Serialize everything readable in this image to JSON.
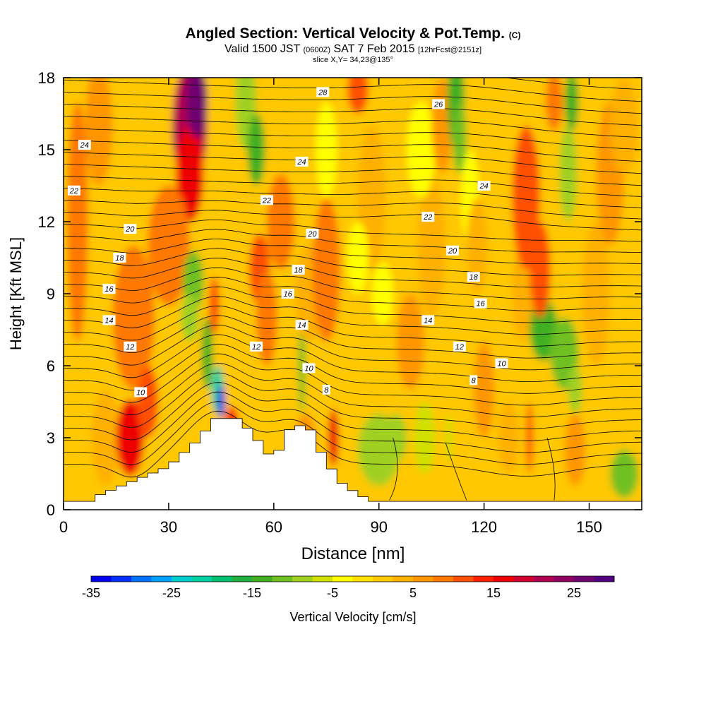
{
  "title": {
    "main": "Angled Section: Vertical Velocity & Pot.Temp.",
    "copyright": "(C)",
    "valid_prefix": "Valid 1500 JST",
    "valid_utc": "(0600Z)",
    "valid_date": "SAT 7 Feb 2015",
    "fcst": "[12hrFcst@2151z]",
    "slice": "slice X,Y= 34,23@135°"
  },
  "chart_data": {
    "type": "heatmap",
    "xlabel": "Distance [nm]",
    "ylabel": "Height [Kft MSL]",
    "xlim": [
      0,
      165
    ],
    "ylim": [
      0,
      18
    ],
    "x_ticks": [
      0,
      30,
      60,
      90,
      120,
      150
    ],
    "y_ticks": [
      0,
      3,
      6,
      9,
      12,
      15,
      18
    ],
    "colorbar": {
      "label": "Vertical Velocity [cm/s]",
      "range": [
        -35,
        30
      ],
      "step": 2.5,
      "tick_labels": [
        -35,
        -25,
        -15,
        -5,
        5,
        15,
        25
      ],
      "colors": [
        "#0000ee",
        "#0030ff",
        "#0070ff",
        "#00a0ff",
        "#00cccc",
        "#00d0a0",
        "#00c070",
        "#20b040",
        "#40b020",
        "#70c020",
        "#a0d020",
        "#d0e000",
        "#ffff00",
        "#ffe000",
        "#ffc800",
        "#ffb000",
        "#ff9600",
        "#ff7800",
        "#ff5000",
        "#ff2000",
        "#ee0000",
        "#d00030",
        "#b00050",
        "#900060",
        "#700070",
        "#500080"
      ]
    },
    "terrain": [
      [
        10,
        0.6
      ],
      [
        30,
        1.8
      ],
      [
        40,
        3.1
      ],
      [
        42,
        3.8
      ],
      [
        50,
        3.8
      ],
      [
        55,
        3.0
      ],
      [
        58,
        2.3
      ],
      [
        62,
        2.5
      ],
      [
        65,
        3.5
      ],
      [
        70,
        3.5
      ],
      [
        72,
        2.8
      ],
      [
        75,
        2.0
      ],
      [
        80,
        1.0
      ],
      [
        85,
        0.6
      ],
      [
        90,
        0
      ]
    ],
    "theta_label_values": [
      8,
      10,
      12,
      14,
      16,
      18,
      20,
      22,
      24,
      26
    ]
  },
  "theta_labels": [
    {
      "text": "28",
      "x": 74,
      "y": 17.4
    },
    {
      "text": "26",
      "x": 107,
      "y": 16.9
    },
    {
      "text": "24",
      "x": 6,
      "y": 15.2
    },
    {
      "text": "24",
      "x": 68,
      "y": 14.5
    },
    {
      "text": "24",
      "x": 120,
      "y": 13.5
    },
    {
      "text": "22",
      "x": 3,
      "y": 13.3
    },
    {
      "text": "22",
      "x": 58,
      "y": 12.9
    },
    {
      "text": "22",
      "x": 104,
      "y": 12.2
    },
    {
      "text": "20",
      "x": 19,
      "y": 11.7
    },
    {
      "text": "20",
      "x": 71,
      "y": 11.5
    },
    {
      "text": "20",
      "x": 111,
      "y": 10.8
    },
    {
      "text": "18",
      "x": 16,
      "y": 10.5
    },
    {
      "text": "18",
      "x": 67,
      "y": 10.0
    },
    {
      "text": "18",
      "x": 117,
      "y": 9.7
    },
    {
      "text": "16",
      "x": 13,
      "y": 9.2
    },
    {
      "text": "16",
      "x": 64,
      "y": 9.0
    },
    {
      "text": "16",
      "x": 119,
      "y": 8.6
    },
    {
      "text": "14",
      "x": 13,
      "y": 7.9
    },
    {
      "text": "14",
      "x": 68,
      "y": 7.7
    },
    {
      "text": "14",
      "x": 104,
      "y": 7.9
    },
    {
      "text": "12",
      "x": 19,
      "y": 6.8
    },
    {
      "text": "12",
      "x": 55,
      "y": 6.8
    },
    {
      "text": "12",
      "x": 113,
      "y": 6.8
    },
    {
      "text": "10",
      "x": 22,
      "y": 4.9
    },
    {
      "text": "10",
      "x": 70,
      "y": 5.9
    },
    {
      "text": "10",
      "x": 125,
      "y": 6.1
    },
    {
      "text": "8",
      "x": 75,
      "y": 5.0
    },
    {
      "text": "8",
      "x": 117,
      "y": 5.4
    }
  ]
}
